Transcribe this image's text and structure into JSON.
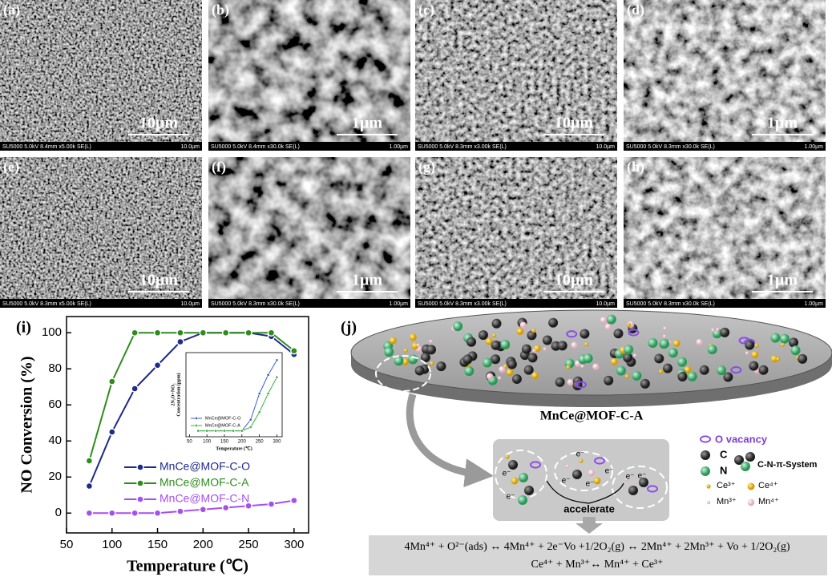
{
  "sem_panels": [
    {
      "label": "(a)",
      "scale": "10µm",
      "info": "SU5000 5.0kV 8.4mm x5.00k SE(L)",
      "field": "10.0µm"
    },
    {
      "label": "(b)",
      "scale": "1µm",
      "info": "SU5000 5.0kV 8.4mm x30.0k SE(L)",
      "field": "1.00µm"
    },
    {
      "label": "(c)",
      "scale": "10µm",
      "info": "SU5000 5.0kV 8.3mm x3.00k SE(L)",
      "field": "10.0µm"
    },
    {
      "label": "(d)",
      "scale": "1µm",
      "info": "SU5000 5.0kV 8.3mm x30.0k SE(L)",
      "field": "1.00µm"
    },
    {
      "label": "(e)",
      "scale": "10µm",
      "info": "SU5000 5.0kV 8.3mm x5.00k SE(L)",
      "field": "10.0µm"
    },
    {
      "label": "(f)",
      "scale": "1µm",
      "info": "SU5000 5.0kV 8.3mm x30.0k SE(L)",
      "field": "1.00µm"
    },
    {
      "label": "(g)",
      "scale": "10µm",
      "info": "SU5000 5.0kV 8.3mm x3.00k SE(L)",
      "field": "10.0µm"
    },
    {
      "label": "(h)",
      "scale": "1µm",
      "info": "SU5000 5.0kV 8.3mm x30.0k SE(L)",
      "field": "1.00µm"
    }
  ],
  "chart_data": [
    {
      "type": "line",
      "panel_label": "(i)",
      "xlabel": "Temperature (℃)",
      "ylabel": "NO Conversion (%)",
      "x": [
        75,
        100,
        125,
        150,
        175,
        200,
        225,
        250,
        275,
        300
      ],
      "series": [
        {
          "name": "MnCe@MOF-C-O",
          "color": "#1f2a8a",
          "values": [
            15,
            45,
            69,
            82,
            95,
            100,
            100,
            100,
            98,
            88
          ]
        },
        {
          "name": "MnCe@MOF-C-A",
          "color": "#2e8b1e",
          "values": [
            29,
            73,
            100,
            100,
            100,
            100,
            100,
            100,
            100,
            90
          ]
        },
        {
          "name": "MnCe@MOF-C-N",
          "color": "#a64ff0",
          "values": [
            0,
            0,
            0,
            0,
            1,
            2,
            3,
            4,
            5,
            7
          ]
        }
      ],
      "xlim": [
        50,
        316
      ],
      "xticks": [
        50,
        100,
        150,
        200,
        250,
        300
      ],
      "ylim": [
        -11,
        109
      ],
      "yticks": [
        0,
        20,
        40,
        60,
        80,
        100
      ],
      "legend": "lower center"
    },
    {
      "type": "line",
      "xlabel": "Temperature (℃)",
      "ylabel": [
        "2N₂O+NO₂",
        "Concentration (ppm)"
      ],
      "x": [
        75,
        100,
        125,
        150,
        175,
        200,
        225,
        250,
        275,
        300
      ],
      "series": [
        {
          "name": "MnCe@MOF-C-O",
          "color": "#3a5fcd",
          "values": [
            0,
            0,
            0,
            0,
            0,
            0,
            15,
            50,
            75,
            95
          ]
        },
        {
          "name": "MnCe@MOF-C-A",
          "color": "#3fae3f",
          "values": [
            0,
            0,
            0,
            0,
            0,
            0,
            5,
            25,
            50,
            72
          ]
        }
      ],
      "xlim": [
        40,
        315
      ],
      "xticks": [
        50,
        100,
        150,
        200,
        250,
        300
      ],
      "ylim": [
        -8,
        105
      ],
      "legend": "lower left"
    }
  ],
  "diagram": {
    "label": "(j)",
    "disk_label": "MnCe@MOF-C-A",
    "accelerate": "accelerate",
    "electron": "e⁻",
    "legend": {
      "o_vacancy": "O vacancy",
      "c": "C",
      "n": "N",
      "cn": "C-N-π-System",
      "ce3": "Ce³⁺",
      "ce4": "Ce⁴⁺",
      "mn3": "Mn³⁺",
      "mn4": "Mn⁴⁺"
    },
    "equations": [
      "4Mn⁴⁺ + O²⁻(ads) ↔ 4Mn⁴⁺ + 2e⁻Vo +1/2O₂(g) ↔ 2Mn⁴⁺ + 2Mn³⁺ + Vo + 1/2O₂(g)",
      "Ce⁴⁺ + Mn³⁺↔ Mn⁴⁺ + Ce³⁺"
    ]
  }
}
